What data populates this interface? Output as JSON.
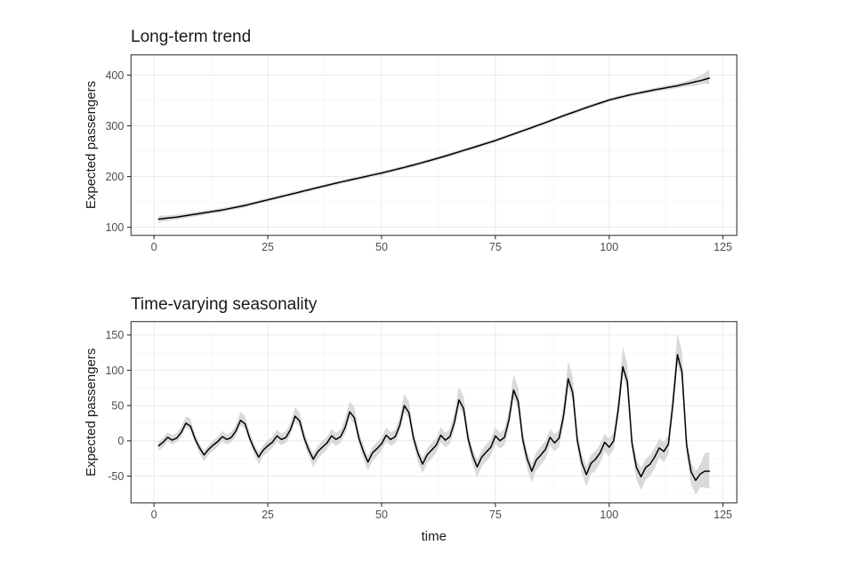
{
  "figure": {
    "background": "#ffffff"
  },
  "style": {
    "line_color": "#000000",
    "ribbon_color": "#d9d9d9",
    "grid_major_color": "#ebebeb",
    "grid_minor_color": "#f5f5f5",
    "panel_border_color": "#4a4a4a",
    "panel_background": "#ffffff",
    "tick_text_color": "#4d4d4d",
    "tick_mark_color": "#333333",
    "title_text_color": "#1a1a1a"
  },
  "chart_data": [
    {
      "type": "line",
      "name": "long-term-trend",
      "title": "Long-term trend",
      "xlabel": "",
      "ylabel": "Expected passengers",
      "legend": "none",
      "grid": true,
      "x_ticks": [
        0,
        25,
        50,
        75,
        100,
        125
      ],
      "y_ticks": [
        100,
        200,
        300,
        400
      ],
      "xlim": [
        -5.05,
        128.05
      ],
      "ylim": [
        84,
        440
      ],
      "x": [
        1,
        2,
        3,
        4,
        5,
        6,
        7,
        8,
        9,
        10,
        11,
        12,
        13,
        14,
        15,
        16,
        17,
        18,
        19,
        20,
        21,
        22,
        23,
        24,
        25,
        26,
        27,
        28,
        29,
        30,
        31,
        32,
        33,
        34,
        35,
        36,
        37,
        38,
        39,
        40,
        41,
        42,
        43,
        44,
        45,
        46,
        47,
        48,
        49,
        50,
        51,
        52,
        53,
        54,
        55,
        56,
        57,
        58,
        59,
        60,
        61,
        62,
        63,
        64,
        65,
        66,
        67,
        68,
        69,
        70,
        71,
        72,
        73,
        74,
        75,
        76,
        77,
        78,
        79,
        80,
        81,
        82,
        83,
        84,
        85,
        86,
        87,
        88,
        89,
        90,
        91,
        92,
        93,
        94,
        95,
        96,
        97,
        98,
        99,
        100,
        101,
        102,
        103,
        104,
        105,
        106,
        107,
        108,
        109,
        110,
        111,
        112,
        113,
        114,
        115,
        116,
        117,
        118,
        119,
        120,
        121,
        122
      ],
      "y": [
        116,
        117,
        118,
        119,
        120,
        121.4,
        122.8,
        124.2,
        125.6,
        127,
        128.4,
        129.8,
        131.2,
        132.6,
        134,
        135.8,
        137.6,
        139.4,
        141.2,
        143,
        145.2,
        147.4,
        149.6,
        151.8,
        154,
        156.2,
        158.4,
        160.6,
        162.8,
        165,
        167.2,
        169.4,
        171.6,
        173.8,
        176,
        178.2,
        180.4,
        182.6,
        184.8,
        187,
        189,
        191,
        193,
        195,
        197,
        199,
        201,
        203,
        205,
        207,
        209.2,
        211.4,
        213.6,
        215.8,
        218,
        220.4,
        222.8,
        225.2,
        227.6,
        230,
        232.6,
        235.2,
        237.8,
        240.4,
        243,
        245.8,
        248.6,
        251.4,
        254.2,
        257,
        259.8,
        262.6,
        265.4,
        268.2,
        271,
        274.2,
        277.4,
        280.6,
        283.8,
        287,
        290.2,
        293.4,
        296.6,
        299.8,
        303,
        306.4,
        309.8,
        313.2,
        316.6,
        320,
        323.2,
        326.4,
        329.6,
        332.8,
        336,
        339,
        342,
        345,
        348,
        351,
        353.2,
        355.4,
        357.6,
        359.8,
        362,
        363.8,
        365.6,
        367.4,
        369.2,
        371,
        372.6,
        374.2,
        375.8,
        377.4,
        379,
        381,
        383,
        385,
        387,
        389,
        391.5,
        394
      ],
      "lower": [
        109,
        111,
        112.5,
        114,
        115,
        116.9,
        118.3,
        119.7,
        121.1,
        122.5,
        124.4,
        125.8,
        127.2,
        128.6,
        130,
        131.8,
        133.6,
        135.4,
        137.2,
        139,
        141.7,
        143.9,
        146.1,
        148.3,
        150.5,
        152.7,
        154.9,
        157.1,
        159.3,
        161.5,
        163.7,
        165.9,
        168.1,
        170.3,
        172.5,
        174.7,
        176.9,
        179.1,
        181.3,
        183.5,
        185.5,
        187.5,
        189.5,
        191.5,
        193.5,
        195.5,
        197.5,
        199.5,
        201.5,
        203.5,
        205.7,
        207.9,
        210.1,
        212.3,
        214.5,
        216.9,
        219.3,
        221.7,
        224.1,
        226.5,
        229.1,
        231.7,
        234.3,
        236.9,
        239.5,
        242.3,
        245.1,
        247.9,
        250.7,
        253.5,
        256.3,
        259.1,
        261.9,
        264.7,
        267.5,
        270.7,
        273.9,
        277.1,
        280.3,
        283.5,
        286.7,
        289.9,
        293.1,
        296.3,
        299.5,
        302.9,
        306.3,
        309.7,
        313.1,
        316.5,
        319.7,
        322.9,
        326.1,
        329.3,
        332.5,
        335.5,
        338.5,
        341.5,
        344.5,
        347.5,
        349.7,
        351.9,
        354.1,
        356.3,
        358.5,
        360.3,
        362.1,
        363.9,
        365.2,
        367,
        368.6,
        370.2,
        371.3,
        372.9,
        374.5,
        376,
        377.5,
        378.5,
        379,
        382,
        383,
        382
      ],
      "upper": [
        123,
        123,
        123.5,
        124,
        125,
        125.9,
        127.3,
        128.7,
        130.1,
        131.5,
        132.4,
        133.8,
        135.2,
        136.6,
        138,
        139.8,
        141.6,
        143.4,
        145.2,
        147,
        148.7,
        150.9,
        153.1,
        155.3,
        157.5,
        159.7,
        161.9,
        164.1,
        166.3,
        168.5,
        170.7,
        172.9,
        175.1,
        177.3,
        179.5,
        181.7,
        183.9,
        186.1,
        188.3,
        190.5,
        192.5,
        194.5,
        196.5,
        198.5,
        200.5,
        202.5,
        204.5,
        206.5,
        208.5,
        210.5,
        212.7,
        214.9,
        217.1,
        219.3,
        221.5,
        223.9,
        226.3,
        228.7,
        231.1,
        233.5,
        236.1,
        238.7,
        241.3,
        243.9,
        246.5,
        249.3,
        252.1,
        254.9,
        257.7,
        260.5,
        263.3,
        266.1,
        268.9,
        271.7,
        274.5,
        277.7,
        280.9,
        284.1,
        287.3,
        290.5,
        293.7,
        296.9,
        300.1,
        303.3,
        306.5,
        309.9,
        313.3,
        316.7,
        320.1,
        323.5,
        326.7,
        329.9,
        333.1,
        336.3,
        339.5,
        342.5,
        345.5,
        348.5,
        351.5,
        354.5,
        356.7,
        358.9,
        361.1,
        363.3,
        365.5,
        367.3,
        369.1,
        370.9,
        373.2,
        375,
        376.6,
        378.2,
        380.3,
        381.9,
        383.5,
        386,
        388.5,
        391.5,
        395,
        399,
        404,
        411
      ]
    },
    {
      "type": "line",
      "name": "time-varying-seasonality",
      "title": "Time-varying seasonality",
      "xlabel": "time",
      "ylabel": "Expected passengers",
      "legend": "none",
      "grid": true,
      "x_ticks": [
        0,
        25,
        50,
        75,
        100,
        125
      ],
      "y_ticks": [
        -50,
        0,
        50,
        100,
        150
      ],
      "xlim": [
        -5.05,
        128.05
      ],
      "ylim": [
        -88,
        169
      ],
      "x": [
        1,
        2,
        3,
        4,
        5,
        6,
        7,
        8,
        9,
        10,
        11,
        12,
        13,
        14,
        15,
        16,
        17,
        18,
        19,
        20,
        21,
        22,
        23,
        24,
        25,
        26,
        27,
        28,
        29,
        30,
        31,
        32,
        33,
        34,
        35,
        36,
        37,
        38,
        39,
        40,
        41,
        42,
        43,
        44,
        45,
        46,
        47,
        48,
        49,
        50,
        51,
        52,
        53,
        54,
        55,
        56,
        57,
        58,
        59,
        60,
        61,
        62,
        63,
        64,
        65,
        66,
        67,
        68,
        69,
        70,
        71,
        72,
        73,
        74,
        75,
        76,
        77,
        78,
        79,
        80,
        81,
        82,
        83,
        84,
        85,
        86,
        87,
        88,
        89,
        90,
        91,
        92,
        93,
        94,
        95,
        96,
        97,
        98,
        99,
        100,
        101,
        102,
        103,
        104,
        105,
        106,
        107,
        108,
        109,
        110,
        111,
        112,
        113,
        114,
        115,
        116,
        117,
        118,
        119,
        120,
        121,
        122
      ],
      "y": [
        -7,
        -2,
        5,
        1,
        4,
        12,
        25,
        21,
        3,
        -10,
        -20,
        -12,
        -6,
        -1,
        6,
        2,
        5,
        14,
        29,
        24,
        4,
        -11,
        -23,
        -13,
        -7,
        -2,
        7,
        2,
        5,
        16,
        35,
        28,
        4,
        -13,
        -26,
        -15,
        -9,
        -3,
        7,
        2,
        6,
        19,
        41,
        33,
        4,
        -15,
        -30,
        -17,
        -11,
        -4,
        8,
        2,
        6,
        22,
        50,
        40,
        4,
        -18,
        -33,
        -20,
        -13,
        -6,
        8,
        1,
        6,
        26,
        58,
        46,
        3,
        -21,
        -37,
        -23,
        -16,
        -9,
        7,
        0,
        5,
        30,
        72,
        56,
        2,
        -26,
        -43,
        -27,
        -20,
        -12,
        5,
        -3,
        4,
        36,
        88,
        68,
        0,
        -31,
        -48,
        -32,
        -26,
        -17,
        -2,
        -9,
        0,
        44,
        105,
        84,
        -3,
        -38,
        -51,
        -38,
        -33,
        -23,
        -10,
        -15,
        -5,
        52,
        122,
        98,
        -6,
        -44,
        -56,
        -47,
        -43,
        -43
      ],
      "lower": [
        -14,
        -9,
        -1,
        -5,
        -2,
        6,
        19,
        15,
        -3,
        -18,
        -29,
        -20,
        -14,
        -8,
        -1,
        -5,
        -2,
        7,
        22,
        17,
        -3,
        -19,
        -33,
        -22,
        -16,
        -10,
        -1,
        -6,
        -3,
        8,
        27,
        20,
        -4,
        -22,
        -37,
        -25,
        -19,
        -12,
        -2,
        -7,
        -3,
        10,
        32,
        24,
        -5,
        -25,
        -42,
        -28,
        -22,
        -14,
        -1,
        -7,
        -3,
        13,
        41,
        31,
        -5,
        -30,
        -46,
        -32,
        -25,
        -17,
        -2,
        -9,
        -4,
        16,
        48,
        36,
        -7,
        -34,
        -52,
        -36,
        -29,
        -21,
        -4,
        -11,
        -6,
        19,
        61,
        45,
        -9,
        -40,
        -59,
        -41,
        -34,
        -25,
        -7,
        -15,
        -8,
        24,
        76,
        56,
        -12,
        -46,
        -65,
        -47,
        -42,
        -31,
        -15,
        -22,
        -12,
        32,
        93,
        72,
        -16,
        -55,
        -70,
        -55,
        -50,
        -39,
        -24,
        -30,
        -19,
        39,
        109,
        85,
        -20,
        -62,
        -76,
        -66,
        -66,
        -68
      ],
      "upper": [
        -1,
        4,
        12,
        8,
        11,
        20,
        35,
        31,
        10,
        -4,
        -14,
        -6,
        1,
        6,
        14,
        9,
        13,
        23,
        41,
        35,
        12,
        -4,
        -16,
        -6,
        1,
        6,
        16,
        10,
        14,
        26,
        48,
        40,
        13,
        -5,
        -18,
        -7,
        0,
        6,
        17,
        11,
        16,
        31,
        56,
        47,
        13,
        -6,
        -21,
        -8,
        -2,
        5,
        19,
        12,
        16,
        35,
        67,
        55,
        14,
        -9,
        -24,
        -11,
        -3,
        4,
        19,
        11,
        17,
        40,
        77,
        63,
        14,
        -11,
        -27,
        -13,
        -5,
        2,
        19,
        11,
        17,
        45,
        94,
        75,
        13,
        -15,
        -32,
        -16,
        -8,
        0,
        17,
        9,
        16,
        53,
        113,
        90,
        12,
        -19,
        -36,
        -20,
        -14,
        -5,
        10,
        3,
        12,
        63,
        133,
        109,
        9,
        -26,
        -39,
        -26,
        -20,
        -10,
        3,
        -2,
        8,
        73,
        153,
        126,
        7,
        -31,
        -43,
        -34,
        -18,
        -16
      ]
    }
  ]
}
